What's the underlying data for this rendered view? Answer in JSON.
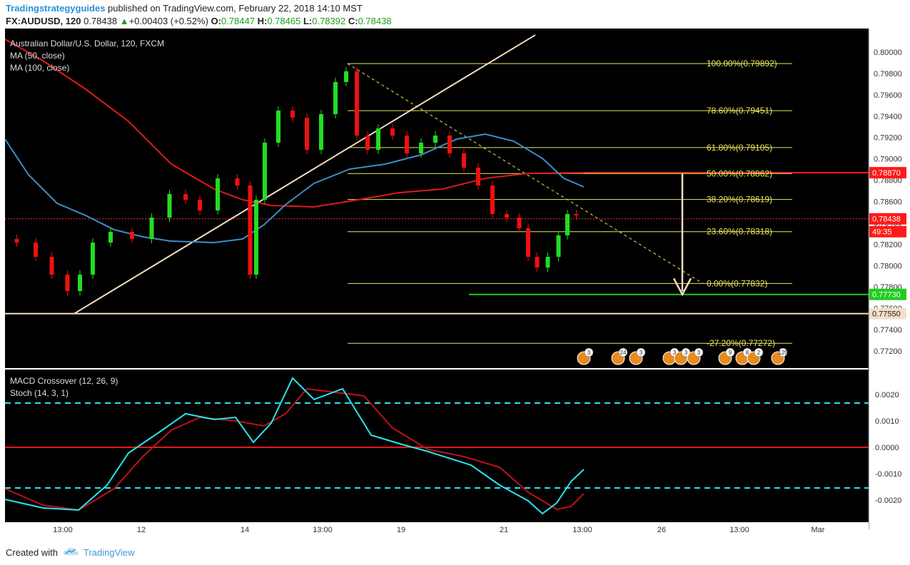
{
  "header": {
    "author": "Tradingstrategyguides",
    "published_text": "published on TradingView.com, February 22, 2018 14:10 MST",
    "symbol": "FX:AUDUSD, 120",
    "last": "0.78438",
    "change": "+0.00403 (+0.52%)",
    "o_label": "O:",
    "o_val": "0.78447",
    "h_label": "H:",
    "h_val": "0.78465",
    "l_label": "L:",
    "l_val": "0.78392",
    "c_label": "C:",
    "c_val": "0.78438"
  },
  "legend": {
    "title": "Australian Dollar/U.S. Dollar, 120, FXCM",
    "ma50": "MA (50, close)",
    "ma100": "MA (100, close)",
    "macd": "MACD Crossover (12, 26, 9)",
    "stoch": "Stoch (14, 3, 1)"
  },
  "fib_levels": [
    {
      "label": "100.00%(0.79892)",
      "price": 0.79892
    },
    {
      "label": "78.60%(0.79451)",
      "price": 0.79451
    },
    {
      "label": "61.80%(0.79105)",
      "price": 0.79105
    },
    {
      "label": "50.00%(0.78862)",
      "price": 0.78862
    },
    {
      "label": "38.20%(0.78619)",
      "price": 0.78619
    },
    {
      "label": "23.60%(0.78318)",
      "price": 0.78318
    },
    {
      "label": "0.00%(0.77832)",
      "price": 0.77832
    },
    {
      "label": "-27.20%(0.77272)",
      "price": 0.77272
    }
  ],
  "price_axis": {
    "ticks": [
      "0.80000",
      "0.79800",
      "0.79600",
      "0.79400",
      "0.79200",
      "0.79000",
      "0.78800",
      "0.78600",
      "0.78400",
      "0.78200",
      "0.78000",
      "0.77800",
      "0.77600",
      "0.77400",
      "0.77200"
    ],
    "tick_values": [
      0.8,
      0.798,
      0.796,
      0.794,
      0.792,
      0.79,
      0.788,
      0.786,
      0.784,
      0.782,
      0.78,
      0.778,
      0.776,
      0.774,
      0.772
    ],
    "range": [
      0.7716,
      0.8011
    ],
    "tags": [
      {
        "text": "0.78870",
        "price": 0.7887,
        "color": "#ff1a1a"
      },
      {
        "text": "0.78438",
        "price": 0.78438,
        "color": "#ff1a1a"
      },
      {
        "text": "49:35",
        "color": "#ff1a1a"
      },
      {
        "text": "0.77730",
        "price": 0.7773,
        "color": "#22cc22"
      },
      {
        "text": "0.77550",
        "price": 0.7755,
        "color": "#f2e0c8"
      }
    ]
  },
  "macd_axis": {
    "ticks": [
      "0.0020",
      "0.0010",
      "0.0000",
      "-0.0010",
      "-0.0020"
    ],
    "tick_values": [
      0.002,
      0.001,
      0,
      -0.001,
      -0.002
    ]
  },
  "time_axis": {
    "labels": [
      "13:00",
      "12",
      "14",
      "13:00",
      "19",
      "21",
      "13:00",
      "26",
      "13:00",
      "Mar"
    ]
  },
  "events": [
    "3",
    "24",
    "3",
    "3",
    "3",
    "3",
    "9",
    "8",
    "2",
    "125"
  ],
  "colors": {
    "background": "#000000",
    "bull": "#22dd22",
    "bear": "#ee1111",
    "ma50": "#3b8ec7",
    "ma100": "#e01a1a",
    "fib": "#e8e860",
    "trendline": "#f5dcc0",
    "macd": "#2be3ee",
    "signal": "#c0111b"
  },
  "footer": {
    "created": "Created with",
    "brand": "TradingView"
  }
}
